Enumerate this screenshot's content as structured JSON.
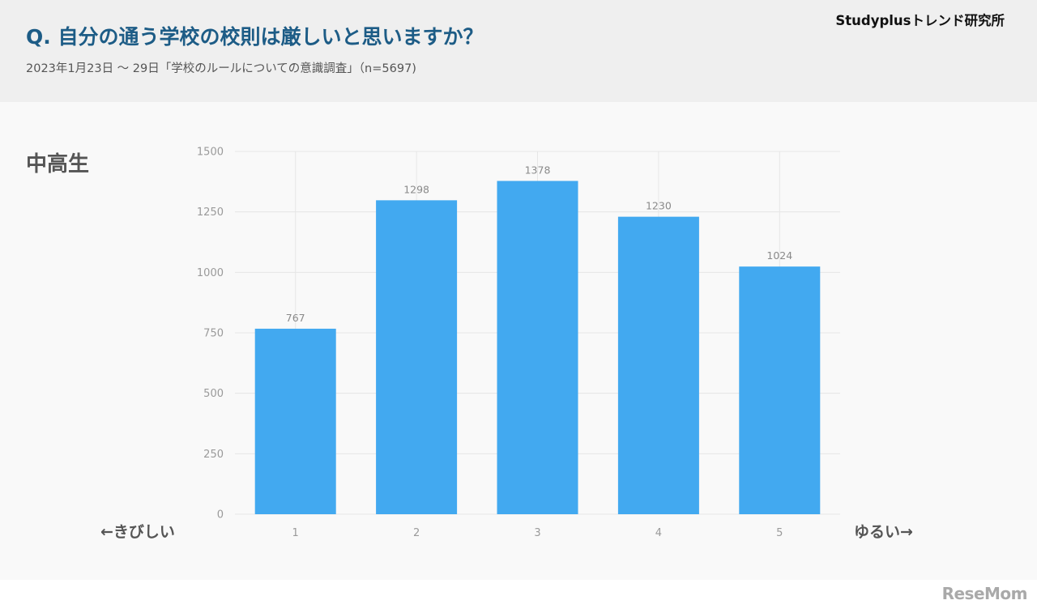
{
  "header": {
    "title": "Q. 自分の通う学校の校則は厳しいと思いますか？",
    "subtitle": "2023年1月23日 〜 29日「学校のルールについての意識調査」（n=5697)",
    "brand": "Studyplusトレンド研究所"
  },
  "panel": {
    "group_label": "中高生",
    "left_note": "←きびしい",
    "right_note": "ゆるい→"
  },
  "watermark": "ReseMom",
  "colors": {
    "bar": "#42a9f0",
    "title": "#1d5c86",
    "header_bg": "#efefef",
    "panel_bg": "#f9f9f9",
    "grid": "#e6e6e6"
  },
  "chart_data": {
    "type": "bar",
    "categories": [
      "1",
      "2",
      "3",
      "4",
      "5"
    ],
    "values": [
      767,
      1298,
      1378,
      1230,
      1024
    ],
    "value_labels": [
      "767",
      "1298",
      "1378",
      "1230",
      "1024"
    ],
    "ylim": [
      0,
      1500
    ],
    "yticks": [
      0,
      250,
      500,
      750,
      1000,
      1250,
      1500
    ],
    "grid": true,
    "title": "",
    "xlabel": "",
    "ylabel": ""
  }
}
